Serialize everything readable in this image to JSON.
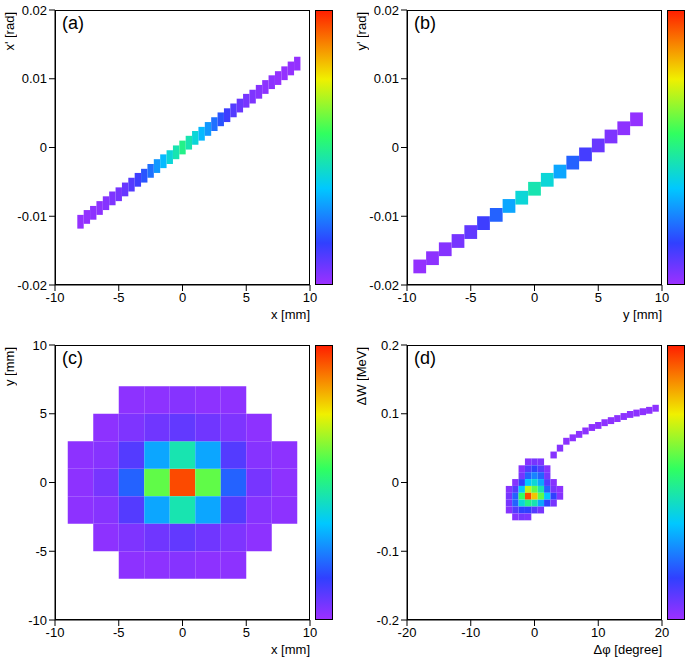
{
  "chart_data": [
    {
      "type": "heatmap",
      "title": "(a)",
      "x_label": "x [mm]",
      "y_label": "x' [rad]",
      "xlim": [
        -10,
        10
      ],
      "ylim": [
        -0.02,
        0.02
      ],
      "xticks": [
        -10,
        -5,
        0,
        5,
        10
      ],
      "yticks": [
        -0.02,
        -0.01,
        0,
        0.01,
        0.02
      ],
      "bin_width": 0.5,
      "bin_height": 0.002,
      "zlim": [
        0,
        1
      ],
      "cells": [
        [
          -8,
          -0.0108,
          0.01
        ],
        [
          -7.5,
          -0.0101,
          0.01
        ],
        [
          -7,
          -0.0095,
          0.02
        ],
        [
          -6.5,
          -0.0088,
          0.02
        ],
        [
          -6,
          -0.0081,
          0.03
        ],
        [
          -5.5,
          -0.0074,
          0.04
        ],
        [
          -5,
          -0.0068,
          0.05
        ],
        [
          -4.5,
          -0.0061,
          0.07
        ],
        [
          -4,
          -0.0054,
          0.1
        ],
        [
          -3.5,
          -0.0047,
          0.13
        ],
        [
          -3,
          -0.0041,
          0.18
        ],
        [
          -2.5,
          -0.0034,
          0.22
        ],
        [
          -2,
          -0.0027,
          0.28
        ],
        [
          -1.5,
          -0.002,
          0.33
        ],
        [
          -1,
          -0.0014,
          0.4
        ],
        [
          -0.5,
          -0.0007,
          0.45
        ],
        [
          0,
          0,
          0.5
        ],
        [
          0.5,
          0.0007,
          0.45
        ],
        [
          1,
          0.0014,
          0.4
        ],
        [
          1.5,
          0.002,
          0.33
        ],
        [
          2,
          0.0027,
          0.28
        ],
        [
          2.5,
          0.0034,
          0.22
        ],
        [
          3,
          0.0041,
          0.18
        ],
        [
          3.5,
          0.0047,
          0.13
        ],
        [
          4,
          0.0054,
          0.1
        ],
        [
          4.5,
          0.0061,
          0.07
        ],
        [
          5,
          0.0068,
          0.05
        ],
        [
          5.5,
          0.0074,
          0.04
        ],
        [
          6,
          0.0081,
          0.03
        ],
        [
          6.5,
          0.0088,
          0.02
        ],
        [
          7,
          0.0095,
          0.02
        ],
        [
          7.5,
          0.0101,
          0.01
        ],
        [
          8,
          0.0108,
          0.01
        ],
        [
          8.5,
          0.0115,
          0.01
        ],
        [
          9,
          0.0122,
          0.01
        ]
      ]
    },
    {
      "type": "heatmap",
      "title": "(b)",
      "x_label": "y [mm]",
      "y_label": "y' [rad]",
      "xlim": [
        -10,
        10
      ],
      "ylim": [
        -0.02,
        0.02
      ],
      "xticks": [
        -10,
        -5,
        0,
        5,
        10
      ],
      "yticks": [
        -0.02,
        -0.01,
        0,
        0.01,
        0.02
      ],
      "bin_width": 1,
      "bin_height": 0.002,
      "zlim": [
        0,
        1
      ],
      "cells": [
        [
          -9,
          -0.0173,
          0.01
        ],
        [
          -8,
          -0.0161,
          0.02
        ],
        [
          -7,
          -0.0148,
          0.03
        ],
        [
          -6,
          -0.0136,
          0.05
        ],
        [
          -5,
          -0.0123,
          0.08
        ],
        [
          -4,
          -0.011,
          0.13
        ],
        [
          -3,
          -0.0098,
          0.2
        ],
        [
          -2,
          -0.0085,
          0.3
        ],
        [
          -1,
          -0.0073,
          0.4
        ],
        [
          0,
          -0.006,
          0.45
        ],
        [
          1,
          -0.0047,
          0.4
        ],
        [
          2,
          -0.0035,
          0.3
        ],
        [
          3,
          -0.0022,
          0.2
        ],
        [
          4,
          -0.001,
          0.12
        ],
        [
          5,
          0.0003,
          0.07
        ],
        [
          6,
          0.0016,
          0.04
        ],
        [
          7,
          0.0028,
          0.02
        ],
        [
          8,
          0.0041,
          0.01
        ]
      ]
    },
    {
      "type": "heatmap",
      "title": "(c)",
      "x_label": "x [mm]",
      "y_label": "y [mm]",
      "xlim": [
        -10,
        10
      ],
      "ylim": [
        -10,
        10
      ],
      "xticks": [
        -10,
        -5,
        0,
        5,
        10
      ],
      "yticks": [
        -10,
        -5,
        0,
        5,
        10
      ],
      "bin_width": 2,
      "bin_height": 2,
      "zlim": [
        0,
        1
      ],
      "cells": [
        [
          -8,
          0,
          0.02
        ],
        [
          -6,
          0,
          0.05
        ],
        [
          -4,
          0,
          0.2
        ],
        [
          -2,
          0,
          0.6
        ],
        [
          0,
          0,
          0.95
        ],
        [
          2,
          0,
          0.6
        ],
        [
          4,
          0,
          0.2
        ],
        [
          6,
          0,
          0.05
        ],
        [
          8,
          0,
          0.02
        ],
        [
          -8,
          2,
          0.02
        ],
        [
          -6,
          2,
          0.03
        ],
        [
          -4,
          2,
          0.1
        ],
        [
          -2,
          2,
          0.3
        ],
        [
          0,
          2,
          0.45
        ],
        [
          2,
          2,
          0.3
        ],
        [
          4,
          2,
          0.1
        ],
        [
          6,
          2,
          0.03
        ],
        [
          8,
          2,
          0.02
        ],
        [
          -8,
          -2,
          0.02
        ],
        [
          -6,
          -2,
          0.03
        ],
        [
          -4,
          -2,
          0.1
        ],
        [
          -2,
          -2,
          0.3
        ],
        [
          0,
          -2,
          0.45
        ],
        [
          2,
          -2,
          0.3
        ],
        [
          4,
          -2,
          0.1
        ],
        [
          6,
          -2,
          0.03
        ],
        [
          8,
          -2,
          0.02
        ],
        [
          -6,
          4,
          0.02
        ],
        [
          -4,
          4,
          0.04
        ],
        [
          -2,
          4,
          0.06
        ],
        [
          0,
          4,
          0.08
        ],
        [
          2,
          4,
          0.06
        ],
        [
          4,
          4,
          0.04
        ],
        [
          6,
          4,
          0.02
        ],
        [
          -6,
          -4,
          0.02
        ],
        [
          -4,
          -4,
          0.04
        ],
        [
          -2,
          -4,
          0.06
        ],
        [
          0,
          -4,
          0.08
        ],
        [
          2,
          -4,
          0.06
        ],
        [
          4,
          -4,
          0.04
        ],
        [
          6,
          -4,
          0.02
        ],
        [
          -4,
          6,
          0.02
        ],
        [
          -2,
          6,
          0.02
        ],
        [
          0,
          6,
          0.03
        ],
        [
          2,
          6,
          0.02
        ],
        [
          4,
          6,
          0.02
        ],
        [
          -4,
          -6,
          0.02
        ],
        [
          -2,
          -6,
          0.02
        ],
        [
          0,
          -6,
          0.03
        ],
        [
          2,
          -6,
          0.02
        ],
        [
          4,
          -6,
          0.02
        ]
      ]
    },
    {
      "type": "heatmap",
      "title": "(d)",
      "x_label": "Δφ [degree]",
      "y_label": "ΔW [MeV]",
      "xlim": [
        -20,
        20
      ],
      "ylim": [
        -0.2,
        0.2
      ],
      "xticks": [
        -20,
        -10,
        0,
        10,
        20
      ],
      "yticks": [
        -0.2,
        -0.1,
        0,
        0.1,
        0.2
      ],
      "bin_width": 1,
      "bin_height": 0.01,
      "zlim": [
        0,
        1
      ],
      "cells": [
        [
          -1,
          0.03,
          0.03
        ],
        [
          0,
          0.03,
          0.05
        ],
        [
          1,
          0.03,
          0.04
        ],
        [
          -2,
          0.02,
          0.03
        ],
        [
          -1,
          0.02,
          0.1
        ],
        [
          0,
          0.02,
          0.15
        ],
        [
          1,
          0.02,
          0.1
        ],
        [
          2,
          0.02,
          0.03
        ],
        [
          -2,
          0.01,
          0.05
        ],
        [
          -1,
          0.01,
          0.2
        ],
        [
          0,
          0.01,
          0.25
        ],
        [
          1,
          0.01,
          0.2
        ],
        [
          2,
          0.01,
          0.05
        ],
        [
          -3,
          0,
          0.03
        ],
        [
          -2,
          0,
          0.15
        ],
        [
          -1,
          0,
          0.35
        ],
        [
          0,
          0,
          0.4
        ],
        [
          1,
          0,
          0.3
        ],
        [
          2,
          0,
          0.1
        ],
        [
          3,
          0,
          0.03
        ],
        [
          -4,
          -0.01,
          0.03
        ],
        [
          -3,
          -0.01,
          0.1
        ],
        [
          -2,
          -0.01,
          0.35
        ],
        [
          -1,
          -0.01,
          0.7
        ],
        [
          0,
          -0.01,
          0.6
        ],
        [
          1,
          -0.01,
          0.45
        ],
        [
          2,
          -0.01,
          0.2
        ],
        [
          3,
          -0.01,
          0.05
        ],
        [
          4,
          -0.01,
          0.02
        ],
        [
          -4,
          -0.02,
          0.05
        ],
        [
          -3,
          -0.02,
          0.2
        ],
        [
          -2,
          -0.02,
          0.55
        ],
        [
          -1,
          -0.02,
          0.95
        ],
        [
          0,
          -0.02,
          0.8
        ],
        [
          1,
          -0.02,
          0.6
        ],
        [
          2,
          -0.02,
          0.35
        ],
        [
          3,
          -0.02,
          0.15
        ],
        [
          4,
          -0.02,
          0.03
        ],
        [
          -4,
          -0.03,
          0.05
        ],
        [
          -3,
          -0.03,
          0.2
        ],
        [
          -2,
          -0.03,
          0.4
        ],
        [
          -1,
          -0.03,
          0.5
        ],
        [
          0,
          -0.03,
          0.45
        ],
        [
          1,
          -0.03,
          0.3
        ],
        [
          2,
          -0.03,
          0.15
        ],
        [
          3,
          -0.03,
          0.05
        ],
        [
          -4,
          -0.04,
          0.03
        ],
        [
          -3,
          -0.04,
          0.1
        ],
        [
          -2,
          -0.04,
          0.15
        ],
        [
          -1,
          -0.04,
          0.15
        ],
        [
          0,
          -0.04,
          0.1
        ],
        [
          1,
          -0.04,
          0.05
        ],
        [
          -3,
          -0.05,
          0.03
        ],
        [
          -2,
          -0.05,
          0.05
        ],
        [
          -1,
          -0.05,
          0.04
        ],
        [
          3,
          0.04,
          0.03
        ],
        [
          4,
          0.05,
          0.03
        ],
        [
          5,
          0.06,
          0.02
        ],
        [
          6,
          0.065,
          0.02
        ],
        [
          7,
          0.07,
          0.02
        ],
        [
          8,
          0.075,
          0.02
        ],
        [
          9,
          0.08,
          0.02
        ],
        [
          10,
          0.083,
          0.02
        ],
        [
          11,
          0.087,
          0.02
        ],
        [
          12,
          0.09,
          0.02
        ],
        [
          13,
          0.093,
          0.02
        ],
        [
          14,
          0.096,
          0.02
        ],
        [
          15,
          0.099,
          0.02
        ],
        [
          16,
          0.101,
          0.02
        ],
        [
          17,
          0.103,
          0.02
        ],
        [
          18,
          0.105,
          0.02
        ],
        [
          19,
          0.108,
          0.02
        ]
      ]
    }
  ]
}
